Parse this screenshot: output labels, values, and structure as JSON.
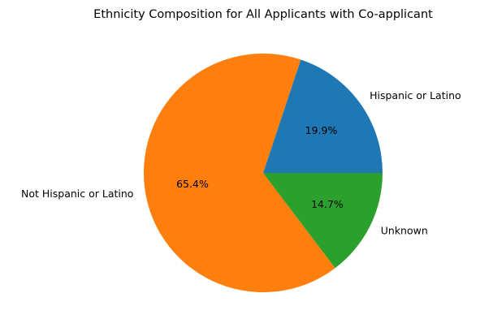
{
  "chart_data": {
    "type": "pie",
    "title": "Ethnicity Composition for All Applicants with Co-applicant",
    "categories": [
      "Hispanic or Latino",
      "Not Hispanic or Latino",
      "Unknown"
    ],
    "values": [
      19.9,
      65.4,
      14.7
    ],
    "value_labels": [
      "19.9%",
      "65.4%",
      "14.7%"
    ],
    "colors": [
      "#1f77b4",
      "#ff7f0e",
      "#2ca02c"
    ],
    "start_angle_deg": 0,
    "direction": "counterclockwise"
  }
}
